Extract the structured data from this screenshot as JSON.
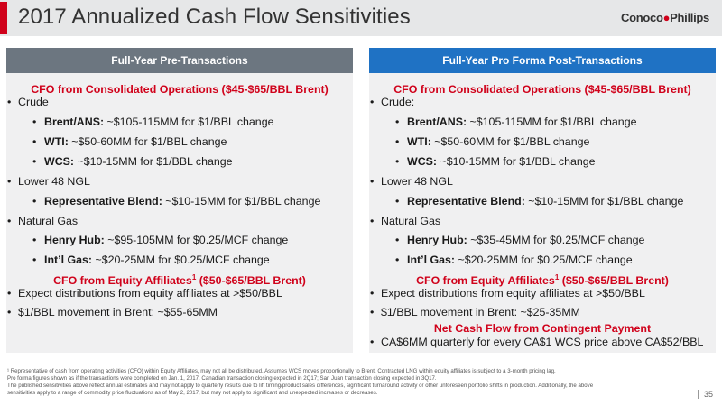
{
  "header": {
    "title": "2017 Annualized Cash Flow Sensitivities",
    "logo_part1": "Conoco",
    "logo_part2": "Phillips"
  },
  "left": {
    "heading": "Full-Year Pre-Transactions",
    "sec1": "CFO from Consolidated Operations ($45-$65/BBL Brent)",
    "crude": "Crude",
    "brent_label": "Brent/ANS:",
    "brent_value": " ~$105-115MM for $1/BBL change",
    "wti_label": "WTI:",
    "wti_value": " ~$50-60MM for $1/BBL change",
    "wcs_label": "WCS:",
    "wcs_value": " ~$10-15MM for $1/BBL change",
    "ngl": "Lower 48 NGL",
    "rep_label": "Representative Blend:",
    "rep_value": " ~$10-15MM for $1/BBL change",
    "gas": "Natural Gas",
    "hh_label": "Henry Hub:",
    "hh_value": " ~$95-105MM for $0.25/MCF change",
    "intl_label": "Int’l Gas:",
    "intl_value": " ~$20-25MM for $0.25/MCF change",
    "sec2": "CFO from Equity Affiliates",
    "sec2_sup": "1",
    "sec2_tail": " ($50-$65/BBL Brent)",
    "dist": "Expect distributions from equity affiliates at >$50/BBL",
    "move": "$1/BBL movement in Brent: ~$55-65MM"
  },
  "right": {
    "heading": "Full-Year Pro Forma Post-Transactions",
    "sec1": "CFO from Consolidated Operations ($45-$65/BBL Brent)",
    "crude": "Crude:",
    "brent_label": "Brent/ANS:",
    "brent_value": " ~$105-115MM for $1/BBL change",
    "wti_label": "WTI:",
    "wti_value": " ~$50-60MM for $1/BBL change",
    "wcs_label": "WCS:",
    "wcs_value": " ~$10-15MM for $1/BBL change",
    "ngl": "Lower 48 NGL",
    "rep_label": "Representative Blend:",
    "rep_value": " ~$10-15MM for $1/BBL change",
    "gas": "Natural Gas",
    "hh_label": "Henry Hub:",
    "hh_value": " ~$35-45MM for $0.25/MCF change",
    "intl_label": "Int’l Gas:",
    "intl_value": " ~$20-25MM for $0.25/MCF change",
    "sec2": "CFO from Equity Affiliates",
    "sec2_sup": "1",
    "sec2_tail": " ($50-$65/BBL Brent)",
    "dist": "Expect distributions from equity affiliates at >$50/BBL",
    "move": "$1/BBL movement in Brent: ~$25-35MM",
    "sec3": "Net Cash Flow from Contingent Payment",
    "contingent": "CA$6MM quarterly for every CA$1 WCS price above CA$52/BBL"
  },
  "footnotes": {
    "line1": "¹ Representative of cash from operating activities (CFO) within Equity Affiliates, may not all be distributed. Assumes WCS moves proportionally to Brent. Contracted LNG within equity affiliates is subject to a 3-month pricing lag.",
    "line2": "Pro forma figures shown as if the transactions were completed on Jan. 1, 2017. Canadian transaction closing expected in 2Q17; San Juan transaction closing expected in 3Q17.",
    "line3": "The published sensitivities above reflect annual estimates and may not apply to quarterly results due to lift timing/product sales differences, significant turnaround activity or other unforeseen portfolio shifts in production. Additionally, the above",
    "line4": "sensitivities apply to a range of commodity price fluctuations as of May 2, 2017, but may not apply to significant and unexpected increases or decreases."
  },
  "page_number": "35",
  "colors": {
    "accent_red": "#d0021b",
    "left_header": "#6c7680",
    "right_header": "#1f72c4",
    "panel_bg": "#f0f0f1"
  }
}
